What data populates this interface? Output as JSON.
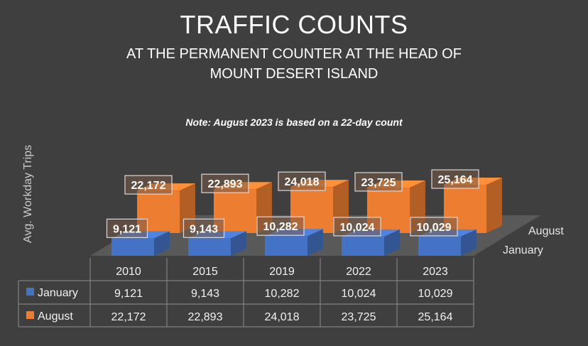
{
  "title": "TRAFFIC COUNTS",
  "subtitle_line1": "AT THE PERMANENT COUNTER AT THE HEAD OF",
  "subtitle_line2": "MOUNT DESERT ISLAND",
  "note": "Note: August 2023 is based on a 22-day count",
  "colors": {
    "january": "#4472c4",
    "august": "#ed7d31",
    "background": "#3f3f3f"
  },
  "chart_data": {
    "type": "bar",
    "title": "TRAFFIC COUNTS",
    "subtitle": "AT THE PERMANENT COUNTER AT THE HEAD OF MOUNT DESERT ISLAND",
    "ylabel": "Avg. Workday Trips",
    "xlabel": "",
    "categories": [
      "2010",
      "2015",
      "2019",
      "2022",
      "2023"
    ],
    "series": [
      {
        "name": "January",
        "values": [
          9121,
          9143,
          10282,
          10024,
          10029
        ],
        "labels": [
          "9,121",
          "9,143",
          "10,282",
          "10,024",
          "10,029"
        ]
      },
      {
        "name": "August",
        "values": [
          22172,
          22893,
          24018,
          23725,
          25164
        ],
        "labels": [
          "22,172",
          "22,893",
          "24,018",
          "23,725",
          "25,164"
        ]
      }
    ],
    "style": "3d-column",
    "legend": "data-table",
    "grid": false
  }
}
